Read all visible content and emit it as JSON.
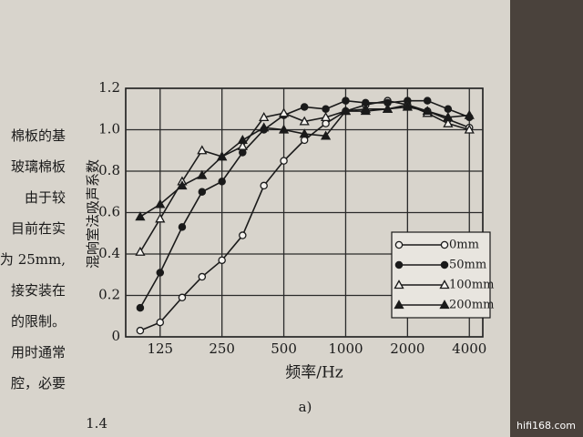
{
  "chart_data": {
    "type": "line",
    "xlabel": "频率/Hz",
    "ylabel": "混响室法吸声系数",
    "caption": "a)",
    "x": [
      100,
      125,
      160,
      200,
      250,
      315,
      400,
      500,
      630,
      800,
      1000,
      1250,
      1600,
      2000,
      2500,
      3150,
      4000
    ],
    "xlim": [
      85,
      4650
    ],
    "xticks": [
      125,
      250,
      500,
      1000,
      2000,
      4000
    ],
    "xscale": "log",
    "ylim": [
      0,
      1.2
    ],
    "yticks": [
      0,
      0.2,
      0.4,
      0.6,
      0.8,
      {
        "value": 1,
        "label": "1.0"
      },
      1.2
    ],
    "grid": true,
    "legend": "lower right",
    "series": [
      {
        "name": "0mm",
        "color": "#1a1a1a",
        "marker": "open-circle",
        "values": [
          0.03,
          0.07,
          0.19,
          0.29,
          0.37,
          0.49,
          0.73,
          0.85,
          0.95,
          1.03,
          1.09,
          1.12,
          1.14,
          1.12,
          1.09,
          1.05,
          1.01
        ]
      },
      {
        "name": "50mm",
        "color": "#1a1a1a",
        "marker": "filled-circle",
        "values": [
          0.14,
          0.31,
          0.53,
          0.7,
          0.75,
          0.89,
          1.0,
          1.07,
          1.11,
          1.1,
          1.14,
          1.13,
          1.13,
          1.14,
          1.14,
          1.1,
          1.06
        ]
      },
      {
        "name": "100mm",
        "color": "#1a1a1a",
        "marker": "open-triangle",
        "values": [
          0.41,
          0.57,
          0.75,
          0.9,
          0.87,
          0.92,
          1.06,
          1.08,
          1.04,
          1.06,
          1.09,
          1.1,
          1.1,
          1.12,
          1.08,
          1.03,
          1.0
        ]
      },
      {
        "name": "200mm",
        "color": "#1a1a1a",
        "marker": "filled-triangle",
        "values": [
          0.58,
          0.64,
          0.73,
          0.78,
          0.87,
          0.95,
          1.01,
          1.0,
          0.98,
          0.97,
          1.09,
          1.09,
          1.1,
          1.11,
          1.09,
          1.06,
          1.07
        ]
      }
    ]
  },
  "side_text": [
    "棉板的基",
    "玻璃棉板",
    "由于较",
    "目前在实",
    "为 25mm,",
    "接安装在",
    "的限制。",
    "用时通常",
    "腔，必要"
  ],
  "bottom_text": "1.4",
  "watermark": "hifi168.com"
}
